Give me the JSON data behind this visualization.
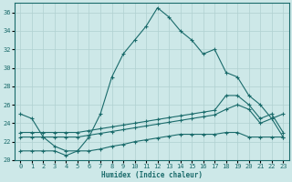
{
  "xlabel": "Humidex (Indice chaleur)",
  "ylabel": "",
  "xlim": [
    -0.5,
    23.5
  ],
  "ylim": [
    20,
    37
  ],
  "yticks": [
    20,
    22,
    24,
    26,
    28,
    30,
    32,
    34,
    36
  ],
  "xticks": [
    0,
    1,
    2,
    3,
    4,
    5,
    6,
    7,
    8,
    9,
    10,
    11,
    12,
    13,
    14,
    15,
    16,
    17,
    18,
    19,
    20,
    21,
    22,
    23
  ],
  "bg_color": "#cde8e8",
  "grid_color": "#b0d0d0",
  "line_color": "#1a6b6b",
  "lines": [
    {
      "x": [
        0,
        1,
        2,
        3,
        4,
        5,
        6,
        7,
        8,
        9,
        10,
        11,
        12,
        13,
        14,
        15,
        16,
        17,
        18,
        19,
        20,
        21,
        22,
        23
      ],
      "y": [
        25.0,
        24.5,
        22.5,
        21.5,
        21.0,
        21.0,
        22.5,
        25.0,
        29.0,
        31.5,
        33.0,
        34.5,
        36.5,
        35.5,
        34.0,
        33.0,
        31.5,
        32.0,
        29.5,
        29.0,
        27.0,
        26.0,
        24.5,
        25.0
      ]
    },
    {
      "x": [
        0,
        1,
        2,
        3,
        4,
        5,
        6,
        7,
        8,
        9,
        10,
        11,
        12,
        13,
        14,
        15,
        16,
        17,
        18,
        19,
        20,
        21,
        22,
        23
      ],
      "y": [
        23.0,
        23.0,
        23.0,
        23.0,
        23.0,
        23.0,
        23.2,
        23.4,
        23.6,
        23.8,
        24.0,
        24.2,
        24.4,
        24.6,
        24.8,
        25.0,
        25.2,
        25.4,
        27.0,
        27.0,
        26.0,
        24.5,
        25.0,
        23.0
      ]
    },
    {
      "x": [
        0,
        1,
        2,
        3,
        4,
        5,
        6,
        7,
        8,
        9,
        10,
        11,
        12,
        13,
        14,
        15,
        16,
        17,
        18,
        19,
        20,
        21,
        22,
        23
      ],
      "y": [
        22.5,
        22.5,
        22.5,
        22.5,
        22.5,
        22.5,
        22.7,
        22.9,
        23.1,
        23.3,
        23.5,
        23.7,
        23.9,
        24.1,
        24.3,
        24.5,
        24.7,
        24.9,
        25.5,
        26.0,
        25.5,
        24.0,
        24.5,
        22.5
      ]
    },
    {
      "x": [
        0,
        1,
        2,
        3,
        4,
        5,
        6,
        7,
        8,
        9,
        10,
        11,
        12,
        13,
        14,
        15,
        16,
        17,
        18,
        19,
        20,
        21,
        22,
        23
      ],
      "y": [
        21.0,
        21.0,
        21.0,
        21.0,
        20.5,
        21.0,
        21.0,
        21.2,
        21.5,
        21.7,
        22.0,
        22.2,
        22.4,
        22.6,
        22.8,
        22.8,
        22.8,
        22.8,
        23.0,
        23.0,
        22.5,
        22.5,
        22.5,
        22.5
      ]
    }
  ]
}
